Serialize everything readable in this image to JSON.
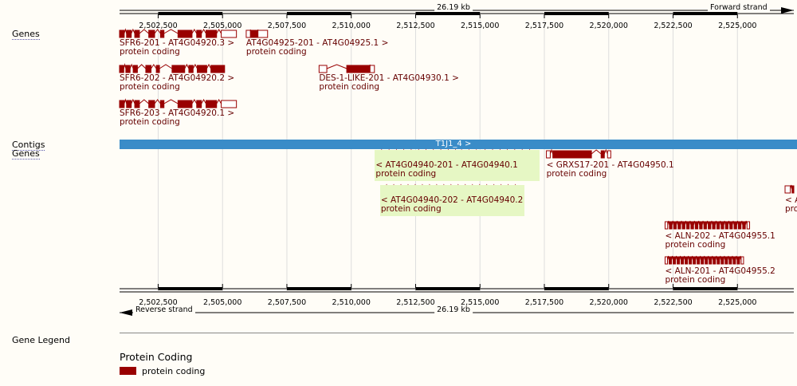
{
  "tracks": {
    "genes_top": "Genes",
    "contigs": "Contigs",
    "genes_bottom": "Genes",
    "gene_legend": "Gene Legend"
  },
  "ruler": {
    "length": "26.19 kb",
    "forward": "Forward strand",
    "reverse": "Reverse strand",
    "ticks": [
      "2,502,500",
      "2,505,000",
      "2,507,500",
      "2,510,000",
      "2,512,500",
      "2,515,000",
      "2,517,500",
      "2,520,000",
      "2,522,500",
      "2,525,000"
    ],
    "start_bp": 2501000,
    "end_bp": 2527190
  },
  "contig": {
    "label": "T1J1_4 >",
    "color": "#3a8cc8"
  },
  "colors": {
    "gene": "#990000",
    "label": "#660000",
    "highlight": "#e6f7c4"
  },
  "genes_forward": [
    {
      "name": "SFR6-201 - AT4G04920.3 >",
      "biotype": "protein coding",
      "start": 2501000,
      "end": 2505540
    },
    {
      "name": "AT4G04925-201 - AT4G04925.1 >",
      "biotype": "protein coding",
      "start": 2505920,
      "end": 2506750
    },
    {
      "name": "SFR6-202 - AT4G04920.2 >",
      "biotype": "protein coding",
      "start": 2501000,
      "end": 2505080
    },
    {
      "name": "DES-1-LIKE-201 - AT4G04930.1 >",
      "biotype": "protein coding",
      "start": 2508750,
      "end": 2510900
    },
    {
      "name": "SFR6-203 - AT4G04920.1 >",
      "biotype": "protein coding",
      "start": 2501000,
      "end": 2505540
    }
  ],
  "genes_reverse": [
    {
      "name": "< AT4G04940-201 - AT4G04940.1",
      "biotype": "protein coding",
      "start": 2510950,
      "end": 2517270,
      "highlight": true
    },
    {
      "name": "< GRXS17-201 - AT4G04950.1",
      "biotype": "protein coding",
      "start": 2517580,
      "end": 2520080,
      "highlight": false
    },
    {
      "name": "< AT4G04940-202 - AT4G04940.2",
      "biotype": "protein coding",
      "start": 2511150,
      "end": 2516710,
      "highlight": true
    },
    {
      "name": "< AT",
      "biotype": "prot",
      "start": 2526850,
      "end": 2527190,
      "highlight": false
    },
    {
      "name": "< ALN-202 - AT4G04955.1",
      "biotype": "protein coding",
      "start": 2522190,
      "end": 2525540,
      "highlight": false
    },
    {
      "name": "< ALN-201 - AT4G04955.2",
      "biotype": "protein coding",
      "start": 2522190,
      "end": 2525300,
      "highlight": false
    }
  ],
  "legend": {
    "section": "Protein Coding",
    "item": "protein coding",
    "color": "#990000"
  }
}
